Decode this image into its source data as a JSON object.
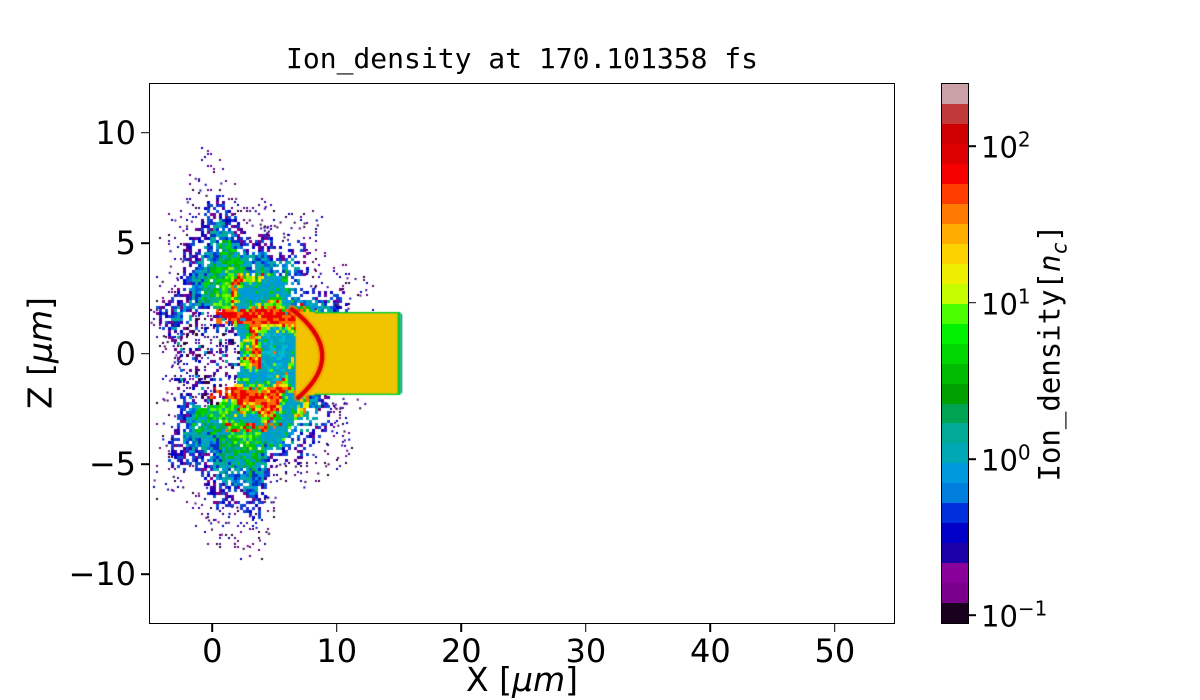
{
  "title": "Ion_density at 170.101358 fs",
  "chart_data": {
    "type": "heatmap",
    "title": "Ion_density at 170.101358 fs",
    "time_fs": 170.101358,
    "xlabel": "X [μm]",
    "ylabel": "Z [μm]",
    "xlabel_parts": {
      "pre": "X [",
      "unit": "μm",
      "post": "]"
    },
    "ylabel_parts": {
      "pre": "Z [",
      "unit": "μm",
      "post": "]"
    },
    "xlim": [
      -5,
      54.75
    ],
    "ylim": [
      -12.2,
      12.2
    ],
    "grid": false,
    "background": "#ffffff",
    "x_ticks": [
      {
        "v": 0,
        "label": "0"
      },
      {
        "v": 10,
        "label": "10"
      },
      {
        "v": 20,
        "label": "20"
      },
      {
        "v": 30,
        "label": "30"
      },
      {
        "v": 40,
        "label": "40"
      },
      {
        "v": 50,
        "label": "50"
      }
    ],
    "y_ticks": [
      {
        "v": 10,
        "label": "10"
      },
      {
        "v": 5,
        "label": "5"
      },
      {
        "v": 0,
        "label": "0"
      },
      {
        "v": -5,
        "label": "−5"
      },
      {
        "v": -10,
        "label": "−10"
      }
    ],
    "colorbar": {
      "label": "Ion_density[nc]",
      "label_parts": {
        "pre": "Ion_density[",
        "var": "n",
        "sub": "c",
        "post": "]"
      },
      "scale": "log",
      "colormap": "nipy_spectral (discrete)",
      "exp_top": 2.4,
      "exp_bottom": -1.05,
      "ticks": [
        {
          "exp": 2,
          "base": "10",
          "sup": "2",
          "value": 100
        },
        {
          "exp": 1,
          "base": "10",
          "sup": "1",
          "value": 10
        },
        {
          "exp": 0,
          "base": "10",
          "sup": "0",
          "value": 1
        },
        {
          "exp": -1,
          "base": "10",
          "sup": "−1",
          "value": 0.1
        }
      ],
      "segments_top_to_bottom": [
        "#c9a1a6",
        "#c13a3a",
        "#cf0000",
        "#dd0000",
        "#f60000",
        "#ff3c00",
        "#ff7a00",
        "#ffad00",
        "#fcd300",
        "#eeee00",
        "#c5fc00",
        "#4bff00",
        "#00f200",
        "#00d600",
        "#00bb00",
        "#00a000",
        "#00a352",
        "#00aa96",
        "#00a7b4",
        "#0099dd",
        "#007edd",
        "#0030dd",
        "#0000c9",
        "#1b00a7",
        "#880099",
        "#7a008b",
        "#1a001f"
      ]
    },
    "features": {
      "description": "Turbulent plasma plume expanding left (-x) from a solid target slab; red bow arc at the ablation front",
      "target_slab": {
        "x_range_um": [
          6.7,
          15.05
        ],
        "z_range_um": [
          -1.88,
          1.88
        ],
        "fill": "#f2c400",
        "edge_green": "#00cc33",
        "edge_teal": "#009e96"
      },
      "bow_arc": {
        "start_um": [
          6.4,
          2.0
        ],
        "apex_um": [
          8.9,
          0
        ],
        "end_um": [
          6.9,
          -2.0
        ],
        "color": "#e00000",
        "halo": "rgba(255,140,0,0.5)"
      },
      "plume": {
        "center_um": [
          3.2,
          -0.2
        ],
        "radius_x_um": 6.9,
        "radius_z_um": 6.1,
        "hollow_center_um": [
          -0.5,
          -0.1
        ],
        "hollow_radius_um": [
          2.8,
          2.3
        ],
        "palette": {
          "fringe": [
            "#6a0080",
            "#4400a2",
            "#30003a",
            "#0000b4"
          ],
          "outer": [
            "#3c00a0",
            "#0000c9",
            "#1b30d2",
            "#7a008b",
            "#0a50d0"
          ],
          "mid": [
            "#0066dd",
            "#0099dd",
            "#00a7b4",
            "#0030c9",
            "#00aa96"
          ],
          "green": [
            "#00a7b4",
            "#00aa96",
            "#00bb00",
            "#0099dd",
            "#00d600",
            "#00a352"
          ],
          "inner": [
            "#00cc00",
            "#22dd00",
            "#4bff00",
            "#00aa96",
            "#9aee00",
            "#00bb66"
          ],
          "red": [
            "#ee0000",
            "#ff6a00"
          ],
          "yellow": [
            "#fcd300",
            "#eeee00"
          ],
          "lime": [
            "#8ae800",
            "#4bff00"
          ],
          "green_d": [
            "#00cc00",
            "#00aa96"
          ],
          "teal_d": [
            "#0099dd",
            "#00a7b4"
          ],
          "pocket": [
            "#0099dd",
            "#00a7b4",
            "#00bbcc"
          ]
        }
      }
    }
  }
}
